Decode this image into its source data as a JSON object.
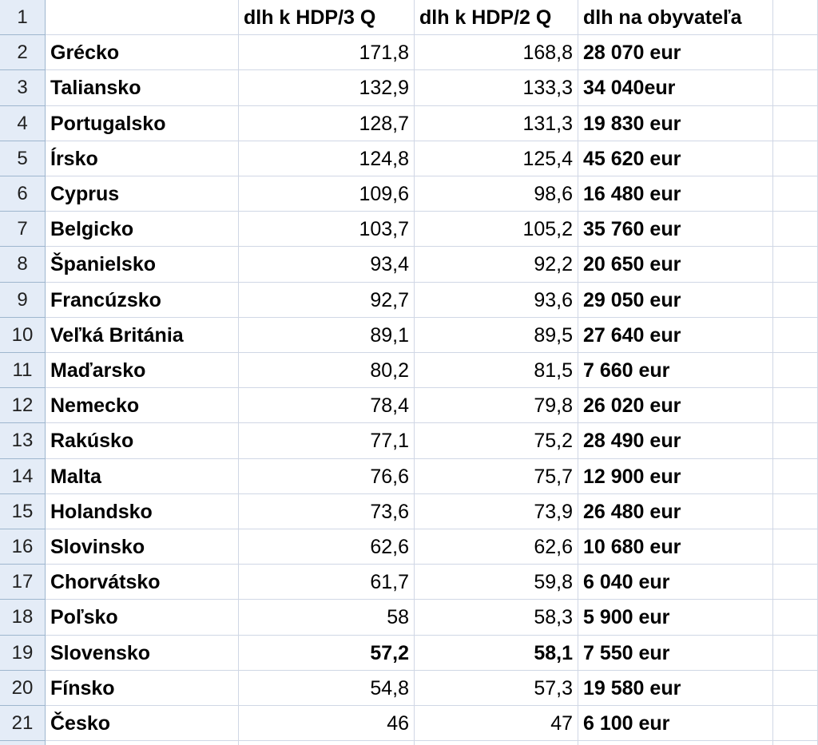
{
  "row_numbers": [
    "1",
    "2",
    "3",
    "4",
    "5",
    "6",
    "7",
    "8",
    "9",
    "10",
    "11",
    "12",
    "13",
    "14",
    "15",
    "16",
    "17",
    "18",
    "19",
    "20",
    "21"
  ],
  "table": {
    "header": [
      "dlh k HDP/3 Q",
      "dlh k HDP/2 Q",
      "dlh na obyvateľa"
    ],
    "rows": [
      [
        "Grécko",
        "171,8",
        "168,8",
        "28 070 eur"
      ],
      [
        "Taliansko",
        "132,9",
        "133,3",
        "34 040eur"
      ],
      [
        "Portugalsko",
        "128,7",
        "131,3",
        "19 830 eur"
      ],
      [
        "Írsko",
        "124,8",
        "125,4",
        "45 620 eur"
      ],
      [
        "Cyprus",
        "109,6",
        "98,6",
        "16 480 eur"
      ],
      [
        "Belgicko",
        "103,7",
        "105,2",
        "35 760 eur"
      ],
      [
        "Španielsko",
        "93,4",
        "92,2",
        "20 650 eur"
      ],
      [
        "Francúzsko",
        "92,7",
        "93,6",
        "29 050 eur"
      ],
      [
        "Veľká Británia",
        "89,1",
        "89,5",
        "27 640 eur"
      ],
      [
        "Maďarsko",
        "80,2",
        "81,5",
        "7 660 eur"
      ],
      [
        "Nemecko",
        "78,4",
        "79,8",
        "26 020 eur"
      ],
      [
        "Rakúsko",
        "77,1",
        "75,2",
        "28 490 eur"
      ],
      [
        "Malta",
        "76,6",
        "75,7",
        "12 900 eur"
      ],
      [
        "Holandsko",
        "73,6",
        "73,9",
        "26 480 eur"
      ],
      [
        "Slovinsko",
        "62,6",
        "62,6",
        "10 680 eur"
      ],
      [
        "Chorvátsko",
        "61,7",
        "59,8",
        "6 040 eur"
      ],
      [
        "Poľsko",
        "58",
        "58,3",
        "5 900 eur"
      ],
      [
        "Slovensko",
        "57,2",
        "58,1",
        "7 550 eur"
      ],
      [
        "Fínsko",
        "54,8",
        "57,3",
        "19 580 eur"
      ],
      [
        "Česko",
        "46",
        "47",
        "6 100 eur"
      ]
    ]
  }
}
